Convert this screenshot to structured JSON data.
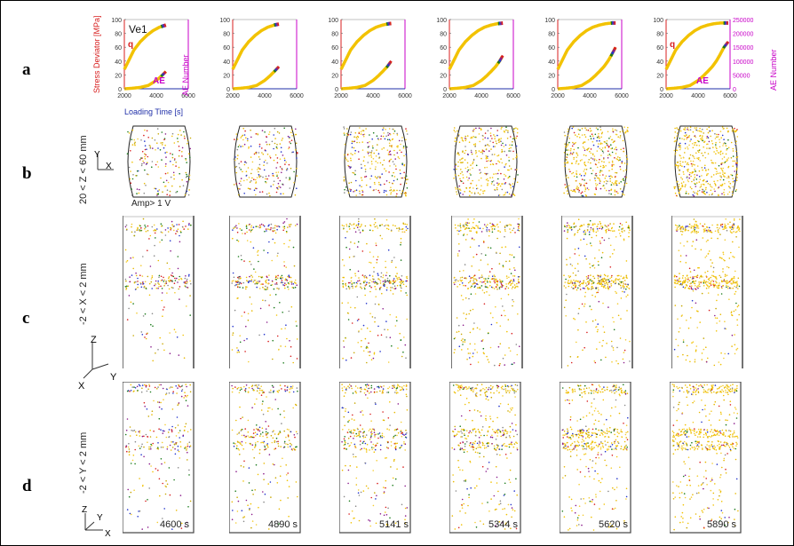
{
  "row_labels": [
    "a",
    "b",
    "c",
    "d"
  ],
  "row_b_label": "20 < Z < 60 mm",
  "row_c_label": "-2 < X < 2 mm",
  "row_d_label": "-2 < Y < 2 mm",
  "amp_label": "Amp> 1 V",
  "times": [
    "4600 s",
    "4890 s",
    "5141 s",
    "5344 s",
    "5620 s",
    "5890 s"
  ],
  "axes_b": {
    "up": "Y",
    "right": "X"
  },
  "axes_c": {
    "up": "Z",
    "left": "X",
    "right": "Y"
  },
  "axes_d": {
    "up": "Z",
    "right": "X",
    "back": "Y"
  },
  "chart_data": {
    "type": "line",
    "specimen": "Ve1",
    "xlabel": "Loading Time [s]",
    "ylabel_left": "Stress Deviator [MPa]",
    "ylabel_right": "AE Number",
    "x_ticks": [
      "2000",
      "4000",
      "6000"
    ],
    "y_left_ticks": [
      "0",
      "20",
      "40",
      "60",
      "80",
      "100"
    ],
    "y_right_ticks": [
      "0",
      "50000",
      "100000",
      "150000",
      "200000",
      "250000"
    ],
    "xlim": [
      2000,
      6000
    ],
    "ylim_left": [
      0,
      100
    ],
    "ylim_right": [
      0,
      250000
    ],
    "series_labels": {
      "stress": "q",
      "ae": "AE"
    },
    "colors": {
      "curve": "#f2c200",
      "stress_label": "#d81f1f",
      "ae_label": "#c800c8",
      "left_axis": "#d81f1f",
      "right_axis": "#c800c8",
      "x_axis": "#1f2fa8"
    },
    "segment_colors": [
      "#1a7a1a",
      "#2233cc",
      "#8a1a8a",
      "#d81f1f"
    ],
    "stress_curve": {
      "x": [
        2000,
        2300,
        2600,
        3000,
        3400,
        3800,
        4200,
        4600,
        5000,
        5400,
        5890
      ],
      "y": [
        28,
        42,
        56,
        68,
        77,
        84,
        89,
        92,
        94,
        95,
        95
      ]
    },
    "ae_curve": {
      "x": [
        2000,
        2500,
        3000,
        3500,
        4000,
        4300,
        4600,
        4890,
        5141,
        5344,
        5620,
        5890
      ],
      "y": [
        0,
        2000,
        5000,
        12000,
        30000,
        45000,
        62000,
        80000,
        100000,
        120000,
        150000,
        170000
      ]
    }
  }
}
